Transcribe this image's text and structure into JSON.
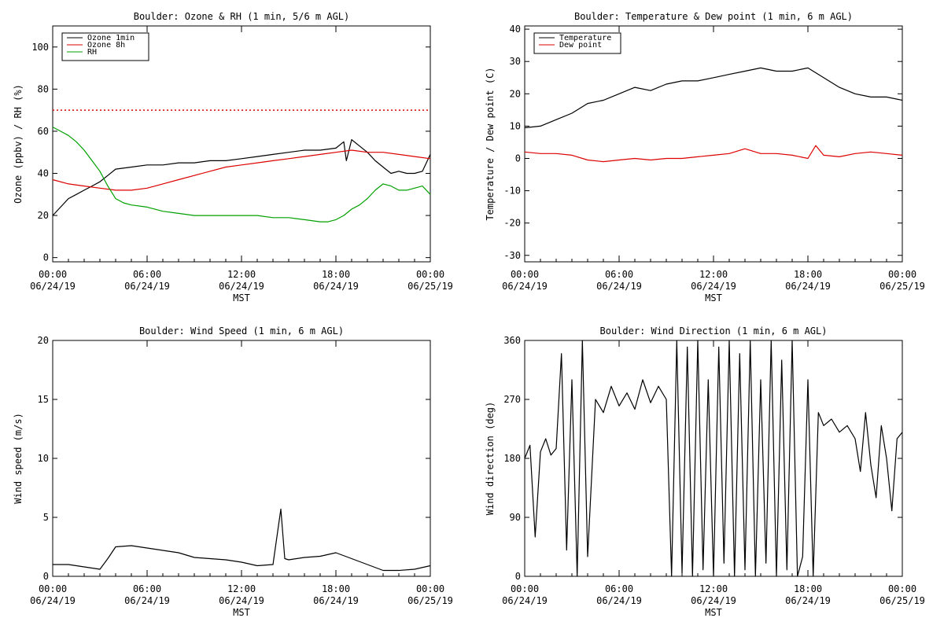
{
  "page": {
    "background": "#ffffff"
  },
  "chart_data": [
    {
      "id": "ozone-rh",
      "type": "line",
      "title": "Boulder: Ozone & RH (1 min, 5/6 m AGL)",
      "xlabel": "MST",
      "ylabel": "Ozone (ppbv) / RH (%)",
      "xlim": [
        "06/24/19 00:00",
        "06/25/19 00:00"
      ],
      "ylim": [
        -2,
        110
      ],
      "yticks": [
        0,
        20,
        40,
        60,
        80,
        100
      ],
      "xticks": [
        {
          "time": "00:00",
          "date": "06/24/19"
        },
        {
          "time": "06:00",
          "date": "06/24/19"
        },
        {
          "time": "12:00",
          "date": "06/24/19"
        },
        {
          "time": "18:00",
          "date": "06/24/19"
        },
        {
          "time": "00:00",
          "date": "06/25/19"
        }
      ],
      "grid": false,
      "legend": "top-left",
      "reference_lines": [
        {
          "y": 70,
          "color": "#dd0000",
          "style": "dotted"
        }
      ],
      "series": [
        {
          "name": "Ozone 1min",
          "color": "#000000",
          "x": [
            "00:00",
            "00:30",
            "01:00",
            "01:30",
            "02:00",
            "02:30",
            "03:00",
            "03:30",
            "04:00",
            "05:00",
            "06:00",
            "07:00",
            "08:00",
            "09:00",
            "10:00",
            "11:00",
            "12:00",
            "13:00",
            "14:00",
            "15:00",
            "16:00",
            "17:00",
            "18:00",
            "18:30",
            "18:40",
            "19:00",
            "19:30",
            "20:00",
            "20:30",
            "21:00",
            "21:30",
            "22:00",
            "22:30",
            "23:00",
            "23:30",
            "24:00"
          ],
          "y": [
            20,
            24,
            28,
            30,
            32,
            34,
            36,
            39,
            42,
            43,
            44,
            44,
            45,
            45,
            46,
            46,
            47,
            48,
            49,
            50,
            51,
            51,
            52,
            55,
            46,
            56,
            53,
            50,
            46,
            43,
            40,
            41,
            40,
            40,
            41,
            49
          ]
        },
        {
          "name": "Ozone 8h",
          "color": "#dd0000",
          "x": [
            "00:00",
            "01:00",
            "02:00",
            "03:00",
            "04:00",
            "05:00",
            "06:00",
            "07:00",
            "08:00",
            "09:00",
            "10:00",
            "11:00",
            "12:00",
            "13:00",
            "14:00",
            "15:00",
            "16:00",
            "17:00",
            "18:00",
            "19:00",
            "20:00",
            "21:00",
            "22:00",
            "23:00",
            "24:00"
          ],
          "y": [
            37,
            35,
            34,
            33,
            32,
            32,
            33,
            35,
            37,
            39,
            41,
            43,
            44,
            45,
            46,
            47,
            48,
            49,
            50,
            51,
            50,
            50,
            49,
            48,
            47
          ]
        },
        {
          "name": "RH",
          "color": "#00a000",
          "x": [
            "00:00",
            "00:30",
            "01:00",
            "01:30",
            "02:00",
            "02:30",
            "03:00",
            "03:30",
            "04:00",
            "04:30",
            "05:00",
            "06:00",
            "07:00",
            "08:00",
            "09:00",
            "10:00",
            "11:00",
            "12:00",
            "13:00",
            "14:00",
            "15:00",
            "16:00",
            "17:00",
            "17:30",
            "18:00",
            "18:30",
            "19:00",
            "19:30",
            "20:00",
            "20:30",
            "21:00",
            "21:30",
            "22:00",
            "22:30",
            "23:00",
            "23:30",
            "24:00"
          ],
          "y": [
            62,
            60,
            58,
            55,
            51,
            46,
            41,
            34,
            28,
            26,
            25,
            24,
            22,
            21,
            20,
            20,
            20,
            20,
            20,
            19,
            19,
            18,
            17,
            17,
            18,
            20,
            23,
            25,
            28,
            32,
            35,
            34,
            32,
            32,
            33,
            34,
            30
          ]
        }
      ]
    },
    {
      "id": "temp-dew",
      "type": "line",
      "title": "Boulder: Temperature & Dew point (1 min, 6 m AGL)",
      "xlabel": "MST",
      "ylabel": "Temperature / Dew point (C)",
      "xlim": [
        "06/24/19 00:00",
        "06/25/19 00:00"
      ],
      "ylim": [
        -32,
        41
      ],
      "yticks": [
        -30,
        -20,
        -10,
        0,
        10,
        20,
        30,
        40
      ],
      "xticks": [
        {
          "time": "00:00",
          "date": "06/24/19"
        },
        {
          "time": "06:00",
          "date": "06/24/19"
        },
        {
          "time": "12:00",
          "date": "06/24/19"
        },
        {
          "time": "18:00",
          "date": "06/24/19"
        },
        {
          "time": "00:00",
          "date": "06/25/19"
        }
      ],
      "grid": false,
      "legend": "top-left",
      "series": [
        {
          "name": "Temperature",
          "color": "#000000",
          "x": [
            "00:00",
            "01:00",
            "02:00",
            "03:00",
            "04:00",
            "05:00",
            "06:00",
            "07:00",
            "08:00",
            "09:00",
            "10:00",
            "11:00",
            "12:00",
            "13:00",
            "14:00",
            "15:00",
            "16:00",
            "17:00",
            "18:00",
            "19:00",
            "20:00",
            "21:00",
            "22:00",
            "23:00",
            "24:00"
          ],
          "y": [
            9.5,
            10,
            12,
            14,
            17,
            18,
            20,
            22,
            21,
            23,
            24,
            24,
            25,
            26,
            27,
            28,
            27,
            27,
            28,
            25,
            22,
            20,
            19,
            19,
            18
          ]
        },
        {
          "name": "Dew point",
          "color": "#dd0000",
          "x": [
            "00:00",
            "01:00",
            "02:00",
            "03:00",
            "04:00",
            "05:00",
            "06:00",
            "07:00",
            "08:00",
            "09:00",
            "10:00",
            "11:00",
            "12:00",
            "13:00",
            "14:00",
            "15:00",
            "16:00",
            "17:00",
            "18:00",
            "18:30",
            "19:00",
            "20:00",
            "21:00",
            "22:00",
            "23:00",
            "24:00"
          ],
          "y": [
            2,
            1.5,
            1.5,
            1,
            -0.5,
            -1,
            -0.5,
            0,
            -0.5,
            0,
            0,
            0.5,
            1,
            1.5,
            3,
            1.5,
            1.5,
            1,
            0,
            4,
            1,
            0.5,
            1.5,
            2,
            1.5,
            1
          ]
        }
      ]
    },
    {
      "id": "wind-speed",
      "type": "line",
      "title": "Boulder: Wind Speed (1 min, 6 m AGL)",
      "xlabel": "MST",
      "ylabel": "Wind speed (m/s)",
      "xlim": [
        "06/24/19 00:00",
        "06/25/19 00:00"
      ],
      "ylim": [
        0,
        20
      ],
      "yticks": [
        0,
        5,
        10,
        15,
        20
      ],
      "xticks": [
        {
          "time": "00:00",
          "date": "06/24/19"
        },
        {
          "time": "06:00",
          "date": "06/24/19"
        },
        {
          "time": "12:00",
          "date": "06/24/19"
        },
        {
          "time": "18:00",
          "date": "06/24/19"
        },
        {
          "time": "00:00",
          "date": "06/25/19"
        }
      ],
      "grid": false,
      "legend": "none",
      "series": [
        {
          "color": "#000000",
          "x": [
            "00:00",
            "01:00",
            "02:00",
            "03:00",
            "03:30",
            "04:00",
            "05:00",
            "06:00",
            "07:00",
            "08:00",
            "09:00",
            "10:00",
            "11:00",
            "12:00",
            "13:00",
            "14:00",
            "14:30",
            "14:45",
            "15:00",
            "16:00",
            "17:00",
            "18:00",
            "19:00",
            "20:00",
            "21:00",
            "22:00",
            "23:00",
            "24:00"
          ],
          "y": [
            1,
            1,
            0.8,
            0.6,
            1.5,
            2.5,
            2.6,
            2.4,
            2.2,
            2.0,
            1.6,
            1.5,
            1.4,
            1.2,
            0.9,
            1.0,
            5.7,
            1.5,
            1.4,
            1.6,
            1.7,
            2.0,
            1.5,
            1.0,
            0.5,
            0.5,
            0.6,
            0.9
          ]
        }
      ]
    },
    {
      "id": "wind-dir",
      "type": "line",
      "title": "Boulder: Wind Direction (1 min, 6 m AGL)",
      "xlabel": "MST",
      "ylabel": "Wind direction (deg)",
      "xlim": [
        "06/24/19 00:00",
        "06/25/19 00:00"
      ],
      "ylim": [
        0,
        360
      ],
      "yticks": [
        0,
        90,
        180,
        270,
        360
      ],
      "xticks": [
        {
          "time": "00:00",
          "date": "06/24/19"
        },
        {
          "time": "06:00",
          "date": "06/24/19"
        },
        {
          "time": "12:00",
          "date": "06/24/19"
        },
        {
          "time": "18:00",
          "date": "06/24/19"
        },
        {
          "time": "00:00",
          "date": "06/25/19"
        }
      ],
      "grid": false,
      "legend": "none",
      "series": [
        {
          "color": "#000000",
          "x": [
            "00:00",
            "00:20",
            "00:40",
            "01:00",
            "01:20",
            "01:40",
            "02:00",
            "02:20",
            "02:40",
            "03:00",
            "03:20",
            "03:40",
            "04:00",
            "04:30",
            "05:00",
            "05:30",
            "06:00",
            "06:30",
            "07:00",
            "07:30",
            "08:00",
            "08:30",
            "09:00",
            "09:20",
            "09:40",
            "10:00",
            "10:20",
            "10:40",
            "11:00",
            "11:20",
            "11:40",
            "12:00",
            "12:20",
            "12:40",
            "13:00",
            "13:20",
            "13:40",
            "14:00",
            "14:20",
            "14:40",
            "15:00",
            "15:20",
            "15:40",
            "16:00",
            "16:20",
            "16:40",
            "17:00",
            "17:20",
            "17:40",
            "18:00",
            "18:20",
            "18:40",
            "19:00",
            "19:30",
            "20:00",
            "20:30",
            "21:00",
            "21:20",
            "21:40",
            "22:00",
            "22:20",
            "22:40",
            "23:00",
            "23:20",
            "23:40",
            "24:00"
          ],
          "y": [
            180,
            200,
            60,
            190,
            210,
            185,
            195,
            340,
            40,
            300,
            0,
            360,
            30,
            270,
            250,
            290,
            260,
            280,
            255,
            300,
            265,
            290,
            270,
            0,
            360,
            5,
            350,
            0,
            360,
            10,
            300,
            0,
            350,
            20,
            360,
            0,
            340,
            10,
            360,
            0,
            300,
            20,
            360,
            0,
            330,
            10,
            360,
            0,
            30,
            300,
            0,
            250,
            230,
            240,
            220,
            230,
            210,
            160,
            250,
            170,
            120,
            230,
            180,
            100,
            210,
            220
          ]
        }
      ]
    }
  ]
}
